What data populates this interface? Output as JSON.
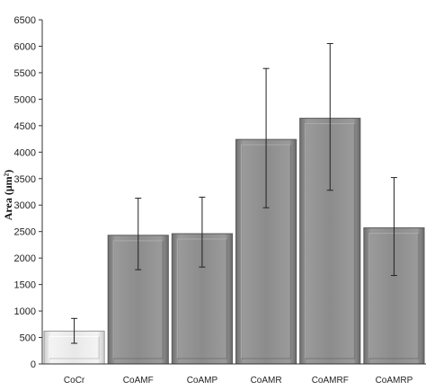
{
  "chart_data": {
    "type": "bar",
    "categories": [
      "CoCr",
      "CoAMF",
      "CoAMP",
      "CoAMR",
      "CoAMRF",
      "CoAMRP"
    ],
    "values": [
      620,
      2430,
      2460,
      4240,
      4640,
      2570
    ],
    "error_low": [
      390,
      1780,
      1830,
      2950,
      3280,
      1670
    ],
    "error_high": [
      860,
      3130,
      3150,
      5580,
      6050,
      3520
    ],
    "ylabel": "Area (μm²)",
    "xlabel": "",
    "ylim": [
      0,
      6500
    ],
    "yticks": [
      0,
      500,
      1000,
      1500,
      2000,
      2500,
      3000,
      3500,
      4000,
      4500,
      5000,
      5500,
      6000,
      6500
    ],
    "grid": false,
    "colors": {
      "first_bar": "#e6e6e6",
      "bars": "#8a8a8a",
      "bar_edge": "#5a5a5a",
      "axis": "#333333"
    }
  }
}
